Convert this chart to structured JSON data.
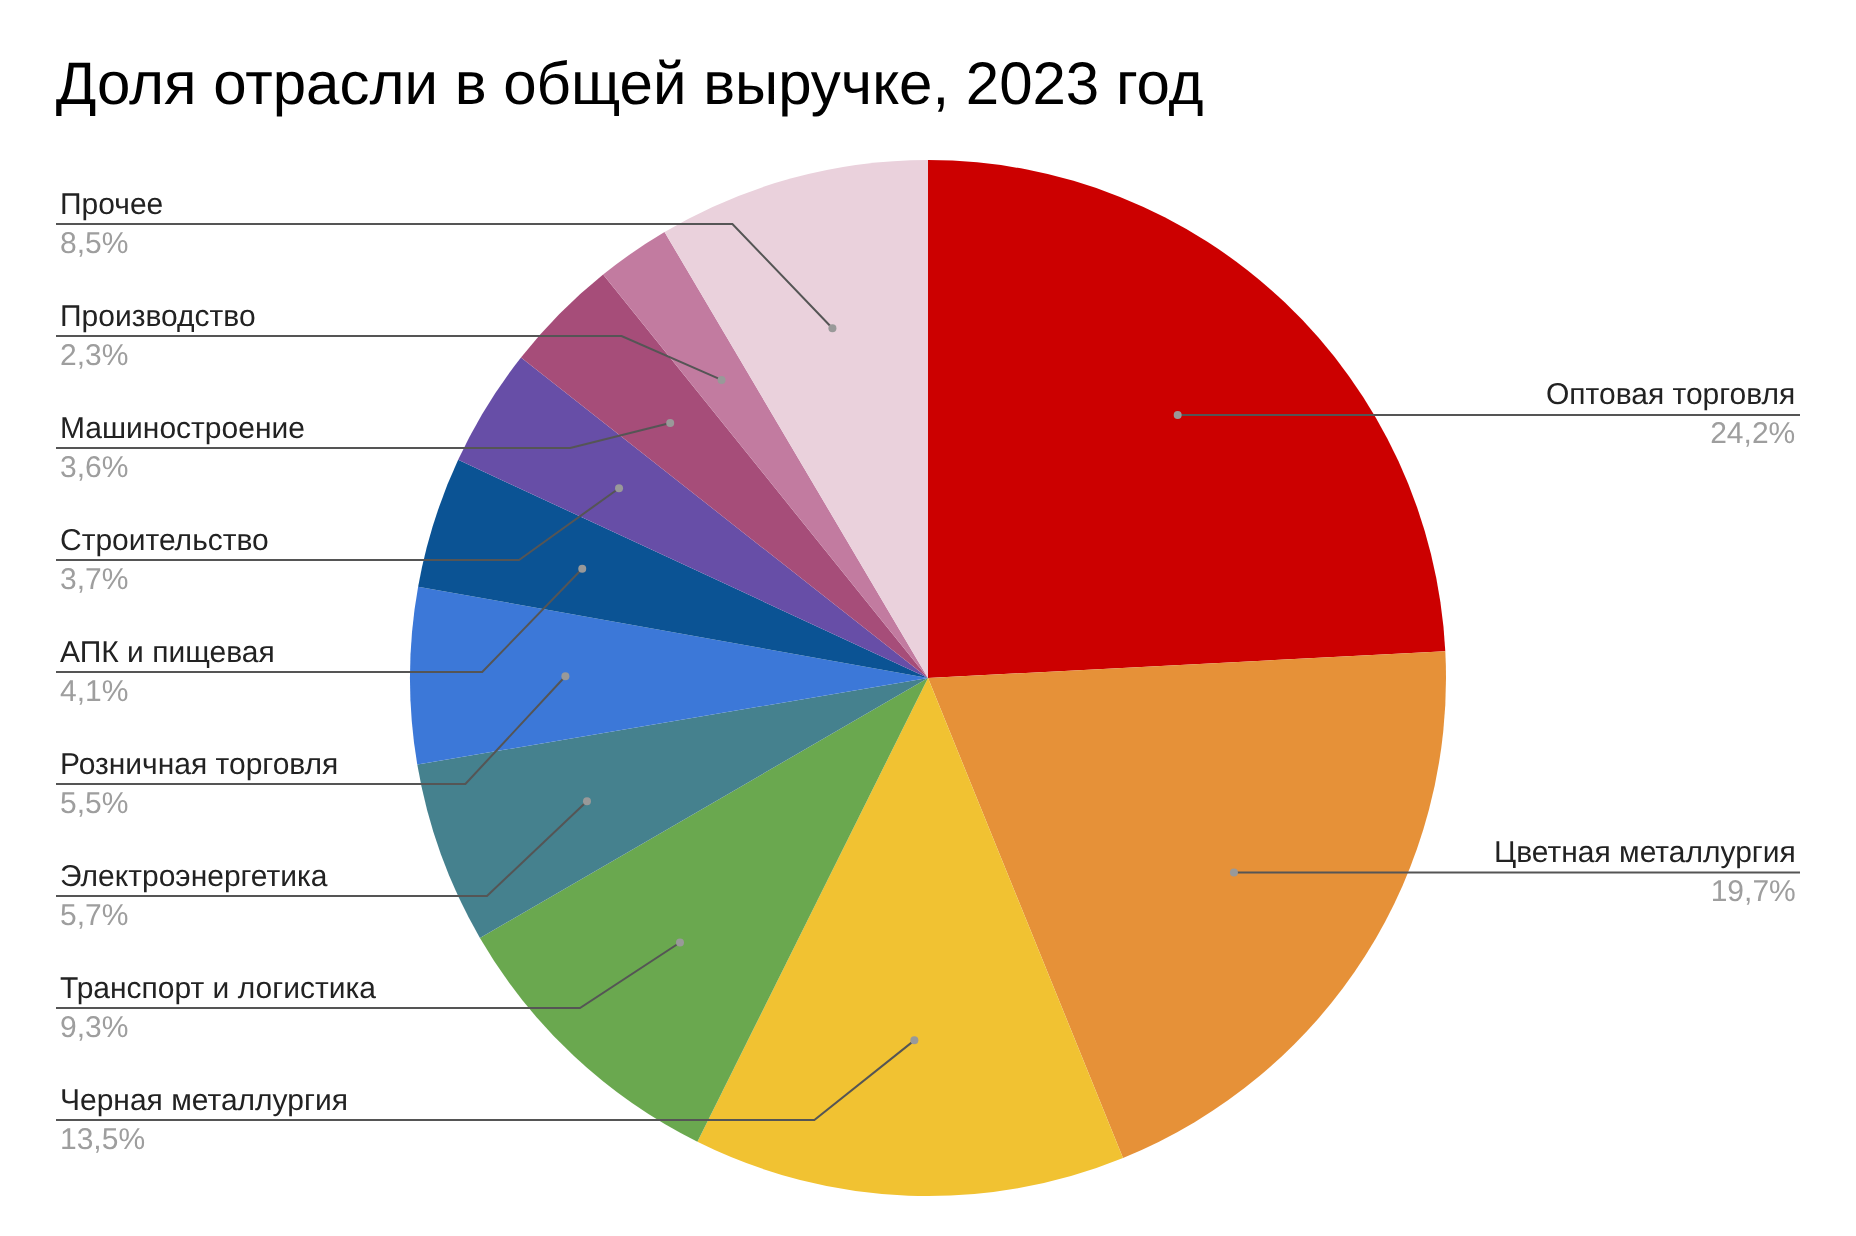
{
  "chart_data": {
    "type": "pie",
    "title": "Доля отрасли в общей выручке, 2023 год",
    "categories": [
      "Оптовая торговля",
      "Цветная металлургия",
      "Черная металлургия",
      "Транспорт и логистика",
      "Электроэнергетика",
      "Розничная торговля",
      "АПК и пищевая",
      "Строительство",
      "Машиностроение",
      "Производство",
      "Прочее"
    ],
    "values": [
      24.2,
      19.7,
      13.5,
      9.3,
      5.7,
      5.5,
      4.1,
      3.7,
      3.6,
      2.3,
      8.5
    ],
    "value_labels": [
      "24,2%",
      "19,7%",
      "13,5%",
      "9,3%",
      "5,7%",
      "5,5%",
      "4,1%",
      "3,7%",
      "3,6%",
      "2,3%",
      "8,5%"
    ],
    "colors": [
      "#cc0000",
      "#e69138",
      "#f1c232",
      "#6aa84f",
      "#45818e",
      "#3c78d8",
      "#0b5394",
      "#674ea7",
      "#a64d79",
      "#c27ba0",
      "#ead1dc"
    ],
    "legend": false
  }
}
